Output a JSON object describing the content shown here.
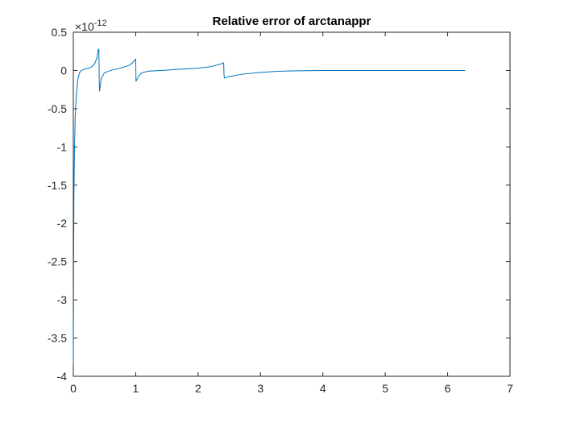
{
  "chart_data": {
    "type": "line",
    "title": "Relative error of arctanappr",
    "xlabel": "",
    "ylabel": "",
    "xlim": [
      0,
      7
    ],
    "ylim": [
      -4,
      0.5
    ],
    "y_exponent_label": {
      "base": "×10",
      "exp": "-12"
    },
    "x_ticks": [
      0,
      1,
      2,
      3,
      4,
      5,
      6,
      7
    ],
    "x_tick_labels": [
      "0",
      "1",
      "2",
      "3",
      "4",
      "5",
      "6",
      "7"
    ],
    "y_ticks": [
      0.5,
      0,
      -0.5,
      -1,
      -1.5,
      -2,
      -2.5,
      -3,
      -3.5,
      -4
    ],
    "y_tick_labels": [
      "0.5",
      "0",
      "-0.5",
      "-1",
      "-1.5",
      "-2",
      "-2.5",
      "-3",
      "-3.5",
      "-4"
    ],
    "grid": false,
    "line_color": "#0072bd",
    "series": [
      {
        "x": [
          0,
          0.005,
          0.01,
          0.02,
          0.03,
          0.05,
          0.07,
          0.1,
          0.13,
          0.16,
          0.2,
          0.25,
          0.3,
          0.35,
          0.38,
          0.4,
          0.41,
          0.415,
          0.42,
          0.45,
          0.5,
          0.6,
          0.7,
          0.8,
          0.9,
          0.95,
          1.0,
          1.005,
          1.02,
          1.05,
          1.1,
          1.2,
          1.4,
          1.6,
          1.8,
          2.0,
          2.2,
          2.35,
          2.41,
          2.415,
          2.42,
          2.5,
          2.7,
          3.0,
          3.3,
          3.6,
          4.0,
          4.5,
          5.0,
          5.5,
          6.0,
          6.28
        ],
        "y": [
          -3.85,
          -2.6,
          -1.6,
          -1.0,
          -0.6,
          -0.3,
          -0.13,
          -0.03,
          0.0,
          0.01,
          0.02,
          0.03,
          0.05,
          0.1,
          0.17,
          0.27,
          0.28,
          -0.1,
          -0.27,
          -0.1,
          -0.03,
          0.0,
          0.02,
          0.04,
          0.07,
          0.1,
          0.15,
          -0.14,
          -0.12,
          -0.07,
          -0.03,
          -0.01,
          0.0,
          0.01,
          0.02,
          0.03,
          0.05,
          0.08,
          0.1,
          -0.05,
          -0.1,
          -0.08,
          -0.05,
          -0.025,
          -0.01,
          -0.005,
          0.0,
          0.0,
          0.0,
          0.0,
          0.0,
          0.0
        ]
      }
    ]
  }
}
